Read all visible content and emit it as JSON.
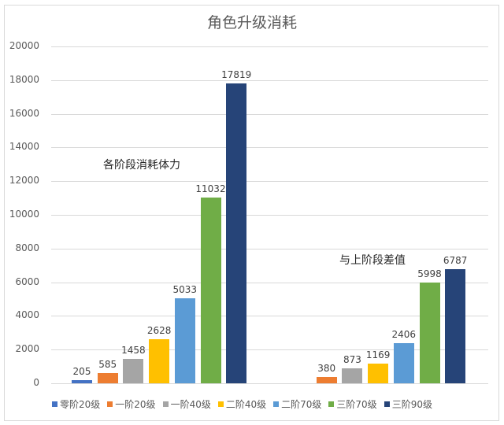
{
  "chart_data": {
    "type": "bar",
    "title": "角色升级消耗",
    "xlabel": "",
    "ylabel": "",
    "ylim": [
      0,
      20000
    ],
    "yticks": [
      0,
      2000,
      4000,
      6000,
      8000,
      10000,
      12000,
      14000,
      16000,
      18000,
      20000
    ],
    "grid": true,
    "legend_position": "bottom",
    "categories": [
      "各阶段消耗体力",
      "与上阶段差值"
    ],
    "series": [
      {
        "name": "零阶20级",
        "color": "#4472c4",
        "values": [
          205,
          null
        ]
      },
      {
        "name": "一阶20级",
        "color": "#ed7d31",
        "values": [
          585,
          380
        ]
      },
      {
        "name": "一阶40级",
        "color": "#a5a5a5",
        "values": [
          1458,
          873
        ]
      },
      {
        "name": "二阶40级",
        "color": "#ffc000",
        "values": [
          2628,
          1169
        ]
      },
      {
        "name": "二阶70级",
        "color": "#5b9bd5",
        "values": [
          5033,
          2406
        ]
      },
      {
        "name": "三阶70级",
        "color": "#70ad47",
        "values": [
          11032,
          5998
        ]
      },
      {
        "name": "三阶90级",
        "color": "#264478",
        "values": [
          17819,
          6787
        ]
      }
    ],
    "annotations": [
      "各阶段消耗体力",
      "与上阶段差值"
    ]
  }
}
